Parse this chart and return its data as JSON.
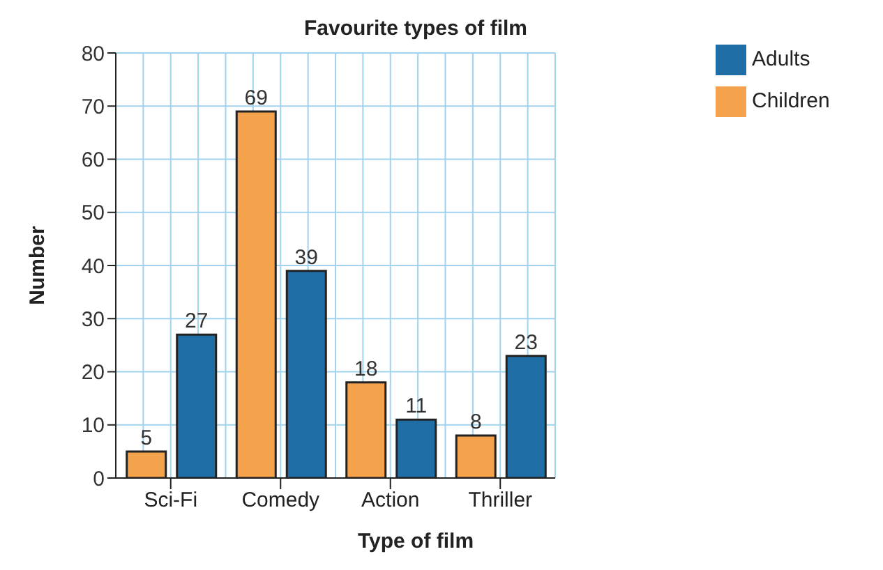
{
  "chart_data": {
    "type": "bar",
    "title": "Favourite types of film",
    "xlabel": "Type of film",
    "ylabel": "Number",
    "categories": [
      "Sci-Fi",
      "Comedy",
      "Action",
      "Thriller"
    ],
    "series": [
      {
        "name": "Children",
        "color": "#f4a24c",
        "values": [
          5,
          69,
          18,
          8
        ]
      },
      {
        "name": "Adults",
        "color": "#1f6fa6",
        "values": [
          27,
          39,
          11,
          23
        ]
      }
    ],
    "ylim": [
      0,
      80
    ],
    "yticks": [
      0,
      10,
      20,
      30,
      40,
      50,
      60,
      70,
      80
    ],
    "grid": true,
    "legend": "top right",
    "data_labels": true
  }
}
